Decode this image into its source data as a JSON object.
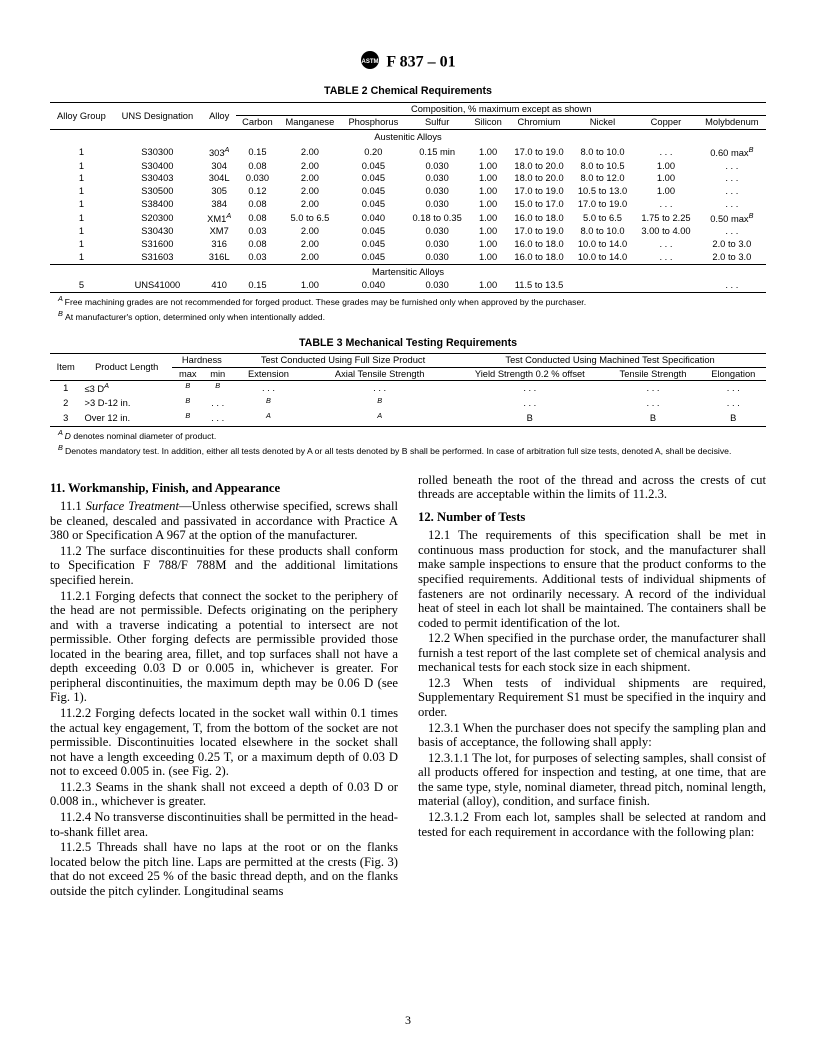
{
  "header": {
    "standard": "F 837 – 01"
  },
  "table2": {
    "title": "TABLE 2   Chemical Requirements",
    "group_label": "Alloy Group",
    "uns_label": "UNS Designation",
    "alloy_label": "Alloy",
    "comp_label": "Composition, % maximum except as shown",
    "cols": [
      "Carbon",
      "Manganese",
      "Phosphorus",
      "Sulfur",
      "Silicon",
      "Chromium",
      "Nickel",
      "Copper",
      "Molybdenum"
    ],
    "section1": "Austenitic Alloys",
    "section2": "Martensitic Alloys",
    "rows_a": [
      {
        "g": "1",
        "uns": "S30300",
        "alloy": "303",
        "sup": "A",
        "v": [
          "0.15",
          "2.00",
          "0.20",
          "0.15 min",
          "1.00",
          "17.0 to 19.0",
          "8.0 to 10.0",
          ". . .",
          "0.60 max"
        ],
        "msup": "B"
      },
      {
        "g": "1",
        "uns": "S30400",
        "alloy": "304",
        "v": [
          "0.08",
          "2.00",
          "0.045",
          "0.030",
          "1.00",
          "18.0 to 20.0",
          "8.0 to 10.5",
          "1.00",
          ". . ."
        ]
      },
      {
        "g": "1",
        "uns": "S30403",
        "alloy": "304L",
        "v": [
          "0.030",
          "2.00",
          "0.045",
          "0.030",
          "1.00",
          "18.0 to 20.0",
          "8.0 to 12.0",
          "1.00",
          ". . ."
        ]
      },
      {
        "g": "1",
        "uns": "S30500",
        "alloy": "305",
        "v": [
          "0.12",
          "2.00",
          "0.045",
          "0.030",
          "1.00",
          "17.0 to 19.0",
          "10.5 to 13.0",
          "1.00",
          ". . ."
        ]
      },
      {
        "g": "1",
        "uns": "S38400",
        "alloy": "384",
        "v": [
          "0.08",
          "2.00",
          "0.045",
          "0.030",
          "1.00",
          "15.0 to 17.0",
          "17.0 to 19.0",
          ". . .",
          ". . ."
        ]
      },
      {
        "g": "1",
        "uns": "S20300",
        "alloy": "XM1",
        "sup": "A",
        "v": [
          "0.08",
          "5.0 to 6.5",
          "0.040",
          "0.18 to 0.35",
          "1.00",
          "16.0 to 18.0",
          "5.0 to 6.5",
          "1.75 to 2.25",
          "0.50 max"
        ],
        "msup": "B"
      },
      {
        "g": "1",
        "uns": "S30430",
        "alloy": "XM7",
        "v": [
          "0.03",
          "2.00",
          "0.045",
          "0.030",
          "1.00",
          "17.0 to 19.0",
          "8.0 to 10.0",
          "3.00 to 4.00",
          ". . ."
        ]
      },
      {
        "g": "1",
        "uns": "S31600",
        "alloy": "316",
        "v": [
          "0.08",
          "2.00",
          "0.045",
          "0.030",
          "1.00",
          "16.0 to 18.0",
          "10.0 to 14.0",
          ". . .",
          "2.0 to 3.0"
        ]
      },
      {
        "g": "1",
        "uns": "S31603",
        "alloy": "316L",
        "v": [
          "0.03",
          "2.00",
          "0.045",
          "0.030",
          "1.00",
          "16.0 to 18.0",
          "10.0 to 14.0",
          ". . .",
          "2.0 to 3.0"
        ]
      }
    ],
    "rows_m": [
      {
        "g": "5",
        "uns": "UNS41000",
        "alloy": "410",
        "v": [
          "0.15",
          "1.00",
          "0.040",
          "0.030",
          "1.00",
          "11.5 to 13.5",
          "",
          "",
          ". . ."
        ]
      }
    ],
    "footA": "Free machining grades are not recommended for forged product. These grades may be furnished only when approved by the purchaser.",
    "footB": "At manufacturer's option, determined only when intentionally added."
  },
  "table3": {
    "title": "TABLE 3   Mechanical Testing Requirements",
    "item_label": "Item",
    "prodlen_label": "Product Length",
    "hardness_label": "Hardness",
    "full_label": "Test Conducted Using Full Size Product",
    "mach_label": "Test Conducted Using Machined Test Specification",
    "hmax": "max",
    "hmin": "min",
    "ext": "Extension",
    "axial": "Axial Tensile Strength",
    "yield": "Yield Strength 0.2 % offset",
    "tensile": "Tensile Strength",
    "elong": "Elongation",
    "rows": [
      {
        "item": "1",
        "len": "≤3 D",
        "lsup": "A",
        "hmax": "B",
        "hmin": "B",
        "ext": ". . .",
        "ax": ". . .",
        "y": ". . .",
        "t": ". . .",
        "e": ". . ."
      },
      {
        "item": "2",
        "len": ">3 D-12 in.",
        "hmax": "B",
        "hmin": ". . .",
        "ext": "B",
        "ax": "B",
        "y": ". . .",
        "t": ". . .",
        "e": ". . ."
      },
      {
        "item": "3",
        "len": "Over 12 in.",
        "hmax": "B",
        "hmin": ". . .",
        "ext": "A",
        "ax": "A",
        "y": "B",
        "t": "B",
        "e": "B"
      }
    ],
    "footA_pre": "D",
    "footA_post": " denotes nominal diameter of product.",
    "footB": "Denotes mandatory test. In addition, either all tests denoted by A or all tests denoted by B shall be performed. In case of arbitration full size tests, denoted A, shall be decisive."
  },
  "body": {
    "s11": {
      "head": "11.  Workmanship, Finish, and Appearance",
      "p11_1a": "11.1 ",
      "p11_1_term": "Surface Treatment",
      "p11_1b": "—Unless otherwise specified, screws shall be cleaned, descaled and passivated in accordance with Practice A 380 or Specification A 967 at the option of the manufacturer.",
      "p11_2": "11.2 The surface discontinuities for these products shall conform to Specification F 788/F 788M and the additional limitations specified herein.",
      "p11_2_1": "11.2.1 Forging defects that connect the socket to the periphery of the head are not permissible. Defects originating on the periphery and with a traverse indicating a potential to intersect are not permissible. Other forging defects are permissible provided those located in the bearing area, fillet, and top surfaces shall not have a depth exceeding 0.03 D or 0.005 in, whichever is greater. For peripheral discontinuities, the maximum depth may be 0.06 D (see Fig. 1).",
      "p11_2_2": "11.2.2 Forging defects located in the socket wall within 0.1 times the actual key engagement, T, from the bottom of the socket are not permissible. Discontinuities located elsewhere in the socket shall not have a length exceeding 0.25 T, or a maximum depth of 0.03 D not to exceed 0.005 in. (see Fig. 2).",
      "p11_2_3": "11.2.3 Seams in the shank shall not exceed a depth of 0.03 D or 0.008 in., whichever is greater.",
      "p11_2_4": "11.2.4 No transverse discontinuities shall be permitted in the head-to-shank fillet area.",
      "p11_2_5": "11.2.5 Threads shall have no laps at the root or on the flanks located below the pitch line. Laps are permitted at the crests (Fig. 3) that do not exceed 25 % of the basic thread depth, and on the flanks outside the pitch cylinder. Longitudinal seams",
      "p_rolled": "rolled beneath the root of the thread and across the crests of cut threads are acceptable within the limits of 11.2.3."
    },
    "s12": {
      "head": "12.  Number of Tests",
      "p12_1": "12.1 The requirements of this specification shall be met in continuous mass production for stock, and the manufacturer shall make sample inspections to ensure that the product conforms to the specified requirements. Additional tests of individual shipments of fasteners are not ordinarily necessary. A record of the individual heat of steel in each lot shall be maintained. The containers shall be coded to permit identification of the lot.",
      "p12_2": "12.2 When specified in the purchase order, the manufacturer shall furnish a test report of the last complete set of chemical analysis and mechanical tests for each stock size in each shipment.",
      "p12_3": "12.3 When tests of individual shipments are required, Supplementary Requirement S1 must be specified in the inquiry and order.",
      "p12_3_1": "12.3.1 When the purchaser does not specify the sampling plan and basis of acceptance, the following shall apply:",
      "p12_3_1_1": "12.3.1.1 The lot, for purposes of selecting samples, shall consist of all products offered for inspection and testing, at one time, that are the same type, style, nominal diameter, thread pitch, nominal length, material (alloy), condition, and surface finish.",
      "p12_3_1_2": "12.3.1.2 From each lot, samples shall be selected at random and tested for each requirement in accordance with the following plan:"
    }
  },
  "pagenum": "3"
}
